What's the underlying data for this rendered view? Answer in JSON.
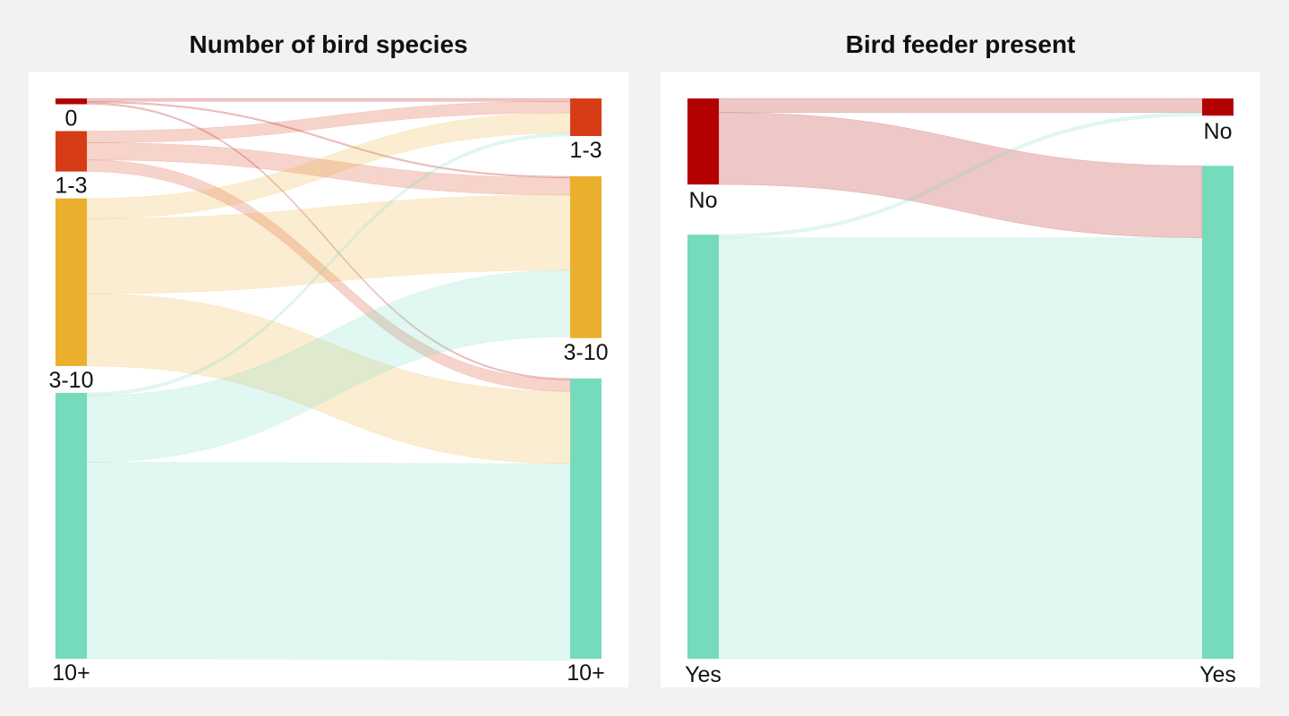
{
  "panels": [
    {
      "id": "species",
      "title": "Number of bird species",
      "nodes": {
        "left": [
          {
            "key": "L0",
            "label": "0",
            "color": "#b30000",
            "value": 1
          },
          {
            "key": "L1",
            "label": "1-3",
            "color": "#d63d16",
            "value": 7
          },
          {
            "key": "L2",
            "label": "3-10",
            "color": "#ebaf2e",
            "value": 29
          },
          {
            "key": "L3",
            "label": "10+",
            "color": "#76dabd",
            "value": 46
          }
        ],
        "right": [
          {
            "key": "R1",
            "label": "1-3",
            "color": "#d63d16",
            "value": 6.5
          },
          {
            "key": "R2",
            "label": "3-10",
            "color": "#ebaf2e",
            "value": 28
          },
          {
            "key": "R3",
            "label": "10+",
            "color": "#76dabd",
            "value": 48.5
          }
        ]
      },
      "flows": [
        {
          "from": "L0",
          "to": "R1",
          "value": 0.5
        },
        {
          "from": "L0",
          "to": "R2",
          "value": 0.25
        },
        {
          "from": "L0",
          "to": "R3",
          "value": 0.25
        },
        {
          "from": "L1",
          "to": "R1",
          "value": 2
        },
        {
          "from": "L1",
          "to": "R2",
          "value": 3
        },
        {
          "from": "L1",
          "to": "R3",
          "value": 2
        },
        {
          "from": "L2",
          "to": "R1",
          "value": 3.5
        },
        {
          "from": "L2",
          "to": "R2",
          "value": 13
        },
        {
          "from": "L2",
          "to": "R3",
          "value": 12.5
        },
        {
          "from": "L3",
          "to": "R1",
          "value": 0.5
        },
        {
          "from": "L3",
          "to": "R2",
          "value": 11.5
        },
        {
          "from": "L3",
          "to": "R3",
          "value": 34
        }
      ]
    },
    {
      "id": "feeder",
      "title": "Bird feeder present",
      "nodes": {
        "left": [
          {
            "key": "L0",
            "label": "No",
            "color": "#b30000",
            "value": 14
          },
          {
            "key": "L1",
            "label": "Yes",
            "color": "#76dabd",
            "value": 69
          }
        ],
        "right": [
          {
            "key": "R0",
            "label": "No",
            "color": "#b30000",
            "value": 2.8
          },
          {
            "key": "R1",
            "label": "Yes",
            "color": "#76dabd",
            "value": 80.2
          }
        ]
      },
      "flows": [
        {
          "from": "L0",
          "to": "R0",
          "value": 2.3
        },
        {
          "from": "L0",
          "to": "R1",
          "value": 11.7
        },
        {
          "from": "L1",
          "to": "R0",
          "value": 0.5
        },
        {
          "from": "L1",
          "to": "R1",
          "value": 68.5
        }
      ]
    }
  ]
}
